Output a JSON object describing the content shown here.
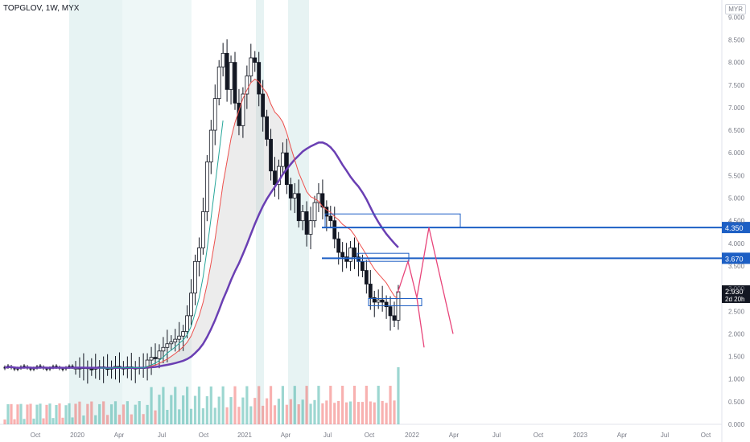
{
  "header": {
    "title": "TOPGLOV, 1W, MYX",
    "currency": "MYR"
  },
  "colors": {
    "up": "#26a69a",
    "down": "#ef5350",
    "black_candle": "#131722",
    "ma_long": "#6a3fb3",
    "ma_mid": "#ef5350",
    "ma_fast": "#26a69a",
    "level": "#1d5fc4",
    "forecast": "#e8457a",
    "shade_teal": "#d6ecec",
    "cloud": "#c9c9c9"
  },
  "chart_data": {
    "type": "candlestick",
    "title": "TOPGLOV, 1W, MYX",
    "currency": "MYR",
    "ylim": [
      0,
      9.5
    ],
    "y_ticks": [
      "9.000",
      "8.500",
      "8.000",
      "7.500",
      "7.000",
      "6.500",
      "6.000",
      "5.500",
      "5.000",
      "4.500",
      "4.000",
      "3.500",
      "3.000",
      "2.500",
      "2.000",
      "1.500",
      "1.000",
      "0.500",
      "0.000"
    ],
    "x_ticks": [
      "Oct",
      "2020",
      "Apr",
      "Jul",
      "Oct",
      "2021",
      "Apr",
      "Jul",
      "Oct",
      "2022",
      "Apr",
      "Jul",
      "Oct",
      "2023",
      "Apr",
      "Jul",
      "Oct"
    ],
    "levels": [
      {
        "label": "4.350",
        "value": 4.35
      },
      {
        "label": "3.670",
        "value": 3.67
      }
    ],
    "last_price": {
      "label": "2.930",
      "value": 2.93,
      "countdown": "2d 20h"
    },
    "close_series": [
      1.25,
      1.24,
      1.26,
      1.23,
      1.22,
      1.25,
      1.27,
      1.24,
      1.22,
      1.26,
      1.28,
      1.25,
      1.23,
      1.27,
      1.24,
      1.25,
      1.26,
      1.24,
      1.42,
      1.48,
      1.45,
      1.62,
      1.7,
      1.78,
      1.82,
      1.88,
      1.95,
      2.05,
      2.4,
      2.9,
      3.6,
      3.9,
      4.7,
      5.8,
      6.5,
      7.2,
      7.9,
      8.2,
      7.4,
      8.0,
      7.1,
      6.6,
      7.3,
      7.7,
      8.1,
      8.0,
      7.3,
      6.8,
      6.3,
      5.6,
      5.3,
      5.7,
      6.0,
      5.3,
      5.0,
      5.1,
      4.5,
      4.7,
      4.2,
      4.5,
      4.9,
      5.1,
      4.8,
      4.6,
      4.5,
      4.1,
      3.8,
      3.7,
      3.6,
      3.9,
      3.7,
      3.6,
      3.4,
      3.1,
      2.8,
      2.7,
      2.75,
      2.7,
      2.6,
      2.4,
      2.3,
      2.93
    ],
    "series": [
      {
        "type": "moving_average",
        "color": "#6a3fb3"
      },
      {
        "type": "moving_average",
        "color": "#ef5350"
      },
      {
        "type": "moving_average",
        "color": "#26a69a"
      }
    ],
    "volume_axis": "0.000 – 1.000"
  }
}
